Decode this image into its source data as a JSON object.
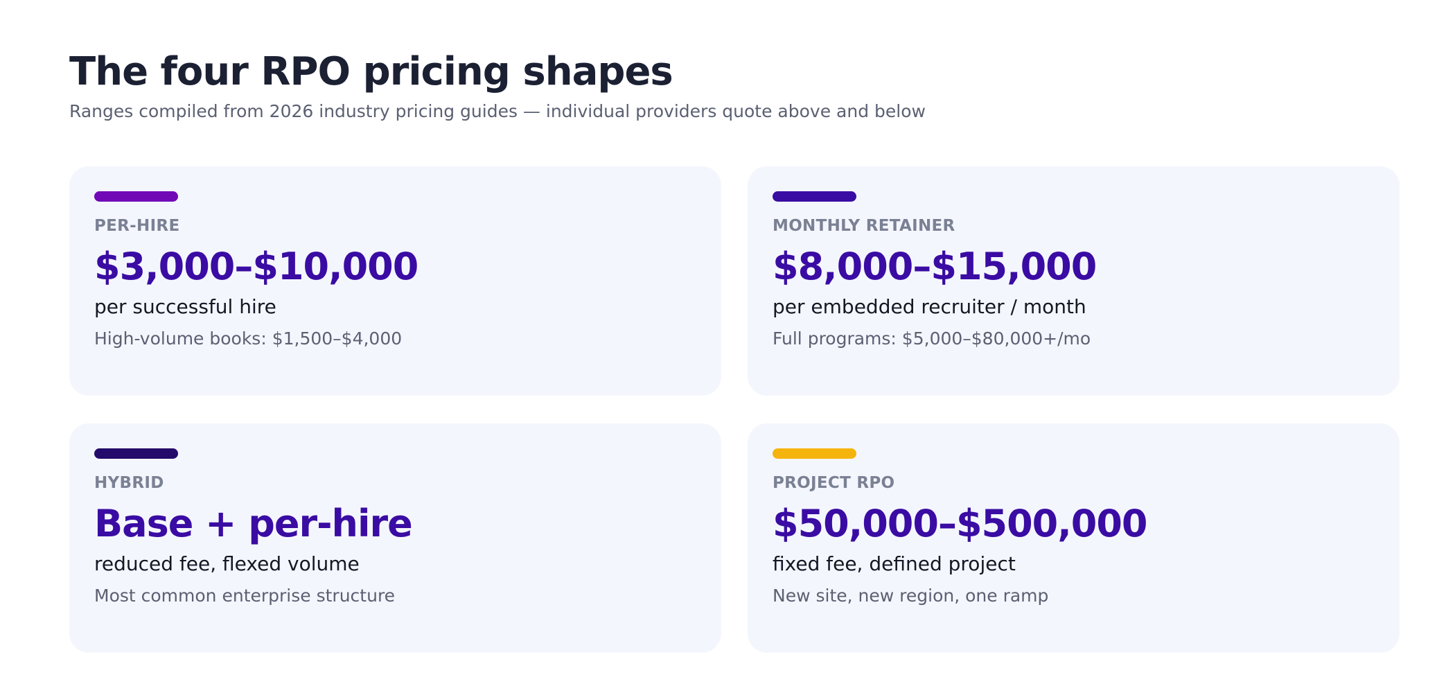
{
  "header": {
    "title": "The four RPO pricing shapes",
    "subtitle": "Ranges compiled from 2026 industry pricing guides — individual providers quote above and below"
  },
  "cards": [
    {
      "label": "PER-HIRE",
      "price": "$3,000–$10,000",
      "unit": "per successful hire",
      "note": "High-volume books: $1,500–$4,000",
      "accent_color": "#7209b7"
    },
    {
      "label": "MONTHLY RETAINER",
      "price": "$8,000–$15,000",
      "unit": "per embedded recruiter / month",
      "note": "Full programs: $5,000–$80,000+/mo",
      "accent_color": "#3a0ca3"
    },
    {
      "label": "HYBRID",
      "price": "Base + per-hire",
      "unit": "reduced fee, flexed volume",
      "note": "Most common enterprise structure",
      "accent_color": "#240a6b"
    },
    {
      "label": "PROJECT RPO",
      "price": "$50,000–$500,000",
      "unit": "fixed fee, defined project",
      "note": "New site, new region, one ramp",
      "accent_color": "#f5b40c"
    }
  ],
  "colors": {
    "background": "#ffffff",
    "card_background": "#f4f6fd",
    "title": "#1b2033",
    "price": "#3a0ca3",
    "label": "#7b8194",
    "subtext": "#5b6072"
  }
}
